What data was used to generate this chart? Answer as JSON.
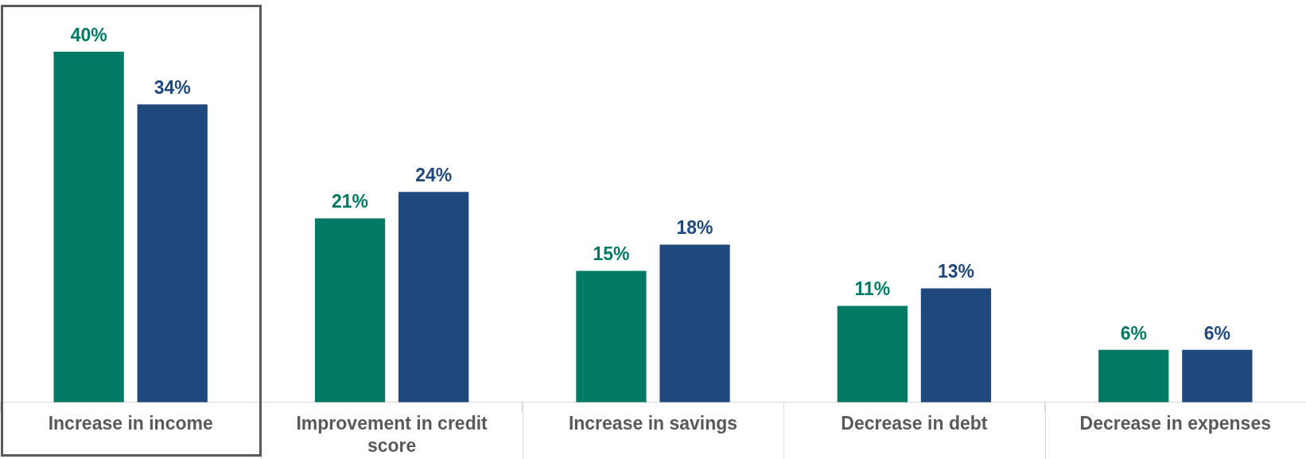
{
  "chart_data": {
    "type": "bar",
    "categories": [
      "Increase in income",
      "Improvement in credit score",
      "Increase in savings",
      "Decrease in debt",
      "Decrease in expenses"
    ],
    "series": [
      {
        "color": "#007a64",
        "values": [
          40,
          21,
          15,
          11,
          6
        ],
        "value_labels": [
          "40%",
          "21%",
          "15%",
          "11%",
          "6%"
        ]
      },
      {
        "color": "#1f497c",
        "values": [
          34,
          24,
          18,
          13,
          6
        ],
        "value_labels": [
          "34%",
          "24%",
          "18%",
          "13%",
          "6%"
        ]
      }
    ],
    "tick_labels": "x",
    "grid": false,
    "legend": false
  }
}
